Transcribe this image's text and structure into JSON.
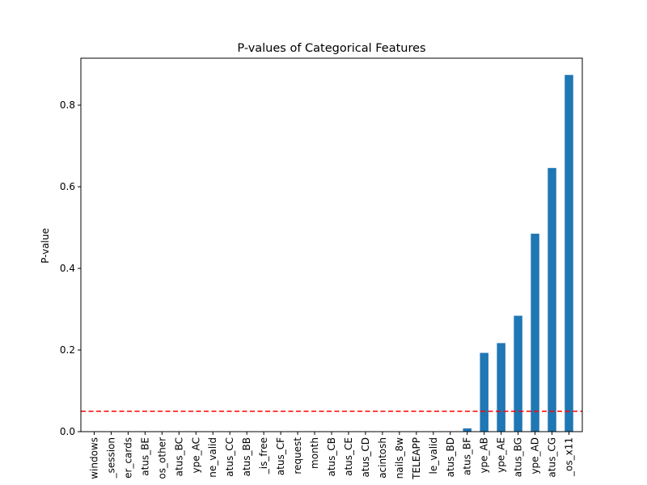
{
  "chart_data": {
    "type": "bar",
    "title": "P-values of Categorical Features",
    "xlabel": "",
    "ylabel": "P-value",
    "categories": [
      "windows",
      "_session",
      "er_cards",
      "atus_BE",
      "os_other",
      "atus_BC",
      "ype_AC",
      "ne_valid",
      "atus_CC",
      "atus_BB",
      "_is_free",
      "atus_CF",
      "request",
      "month",
      "atus_CB",
      "atus_CE",
      "atus_CD",
      "acintosh",
      "nails_8w",
      "TELEAPP",
      "le_valid",
      "atus_BD",
      "atus_BF",
      "ype_AB",
      "ype_AE",
      "atus_BG",
      "ype_AD",
      "atus_CG",
      "_os_x11"
    ],
    "values": [
      0,
      0,
      0,
      0,
      0,
      0,
      0,
      0,
      0,
      0,
      0,
      0,
      0,
      0,
      0,
      0,
      0,
      0,
      0,
      0,
      0,
      0,
      0.008,
      0.193,
      0.217,
      0.284,
      0.485,
      0.646,
      0.874
    ],
    "ylim": [
      0,
      0.915
    ],
    "yticks": [
      0.0,
      0.2,
      0.4,
      0.6,
      0.8
    ],
    "ytick_labels": [
      "0.0",
      "0.2",
      "0.4",
      "0.6",
      "0.8"
    ],
    "threshold": 0.05,
    "threshold_color": "#ff0000",
    "bar_color": "#1f77b4",
    "grid": false,
    "legend": "none"
  }
}
